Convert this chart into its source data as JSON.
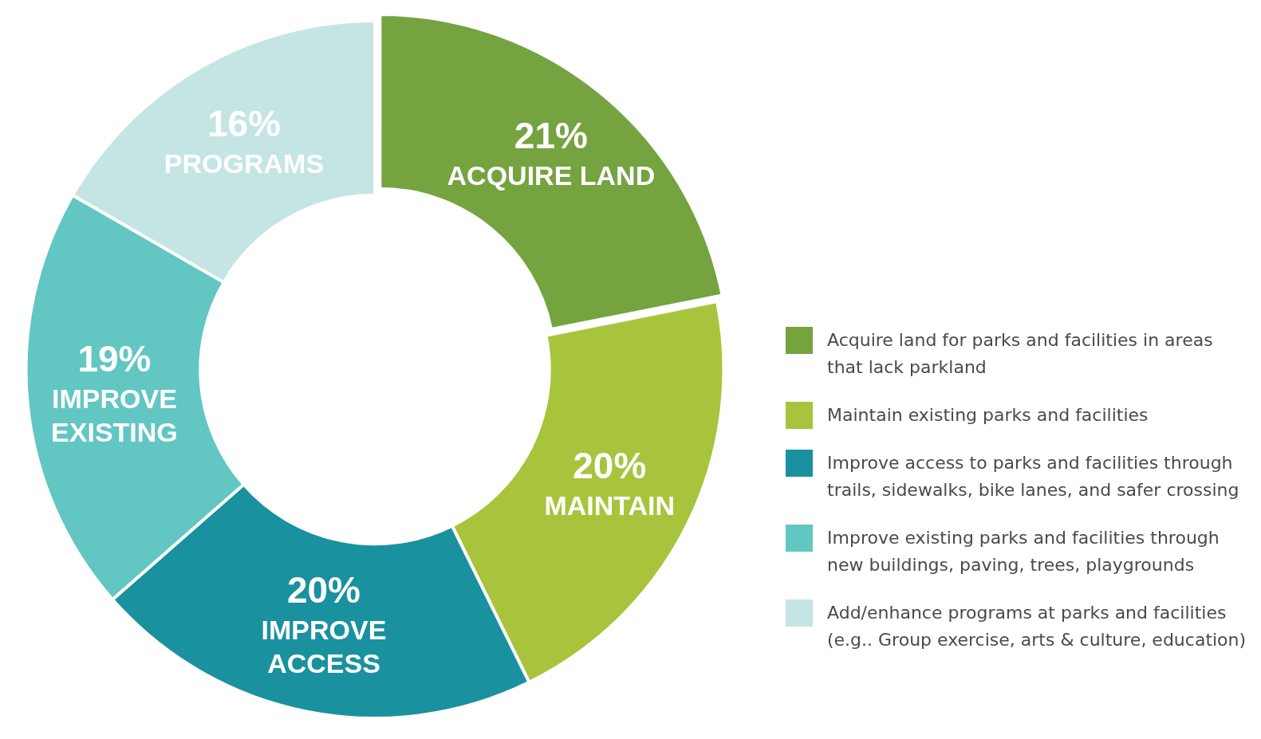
{
  "chart_data": {
    "type": "donut",
    "categories": [
      "Acquire land for parks and facilities in areas that lack parkland",
      "Maintain existing parks and facilities",
      "Improve access to parks and facilities through trails, sidewalks, bike lanes, and safer crossing",
      "Improve existing parks and facilities through new buildings, paving, trees, playgrounds",
      "Add/enhance programs at parks and facilities (e.g.. Group exercise, arts & culture, education)"
    ],
    "values": [
      21,
      20,
      20,
      19,
      16
    ],
    "colors": [
      "#74a340",
      "#a8c43c",
      "#1a919e",
      "#62c6c3",
      "#c4e5e4"
    ],
    "value_labels": [
      "21%",
      "20%",
      "20%",
      "19%",
      "16%"
    ],
    "annotations": [
      "ACQUIRE LAND",
      "MAINTAIN",
      "IMPROVE ACCESS",
      "IMPROVE EXISTING",
      "PROGRAMS"
    ],
    "legend": "right"
  }
}
